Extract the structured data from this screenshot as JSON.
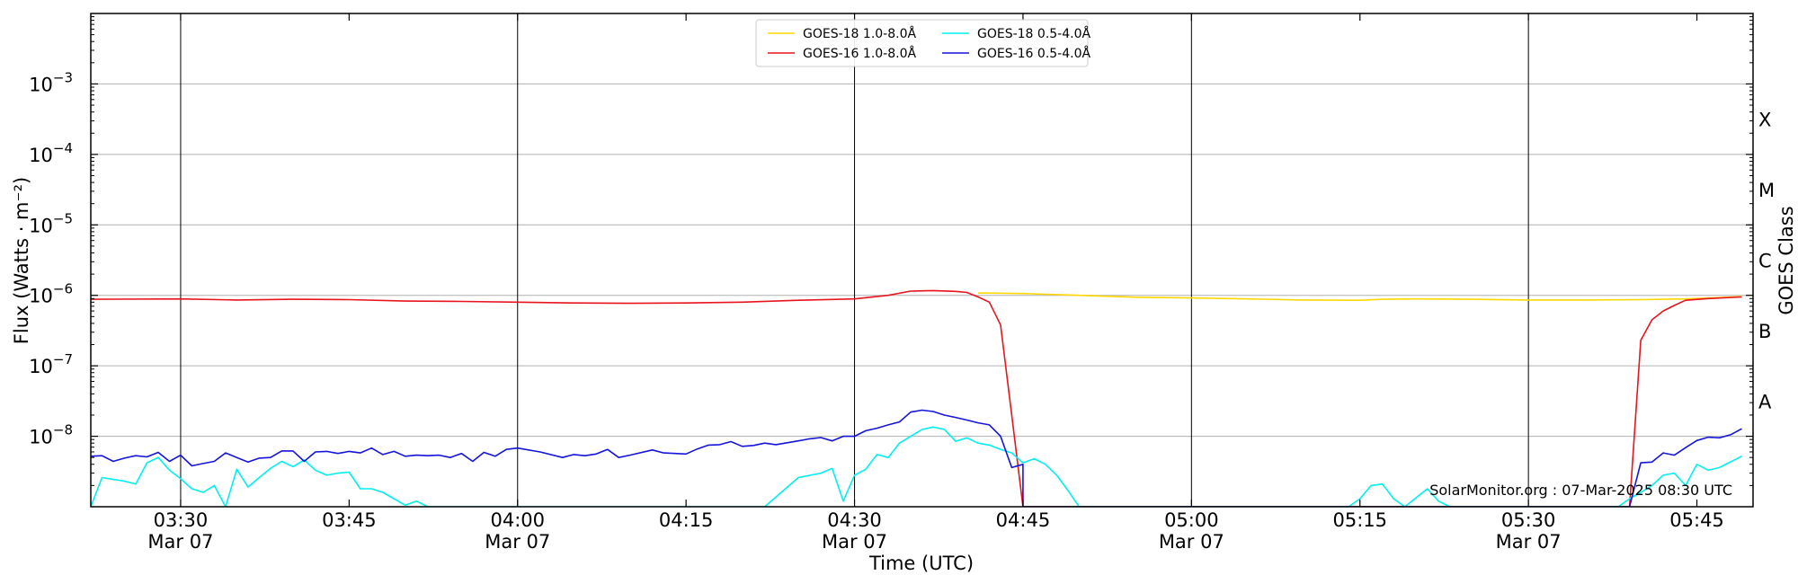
{
  "chart_data": {
    "type": "line",
    "xlabel": "Time (UTC)",
    "ylabel": "Flux (Watts · m⁻²)",
    "right_label": "GOES Class",
    "credit": "SolarMonitor.org : 07-Mar-2025 08:30 UTC",
    "ylog": true,
    "xlim": [
      "03:22",
      "05:50"
    ],
    "ylim": [
      1e-09,
      0.01
    ],
    "grid": "horizontal",
    "legend": "top-center",
    "x_ticks": [
      {
        "time": "03:30",
        "label": "03:30",
        "date": "Mar 07",
        "vline": true
      },
      {
        "time": "03:45",
        "label": "03:45",
        "date": "",
        "vline": false
      },
      {
        "time": "04:00",
        "label": "04:00",
        "date": "Mar 07",
        "vline": true
      },
      {
        "time": "04:15",
        "label": "04:15",
        "date": "",
        "vline": false
      },
      {
        "time": "04:30",
        "label": "04:30",
        "date": "Mar 07",
        "vline": true
      },
      {
        "time": "04:45",
        "label": "04:45",
        "date": "",
        "vline": false
      },
      {
        "time": "05:00",
        "label": "05:00",
        "date": "Mar 07",
        "vline": true
      },
      {
        "time": "05:15",
        "label": "05:15",
        "date": "",
        "vline": false
      },
      {
        "time": "05:30",
        "label": "05:30",
        "date": "Mar 07",
        "vline": true
      },
      {
        "time": "05:45",
        "label": "05:45",
        "date": "",
        "vline": false
      }
    ],
    "y_ticks": [
      {
        "value": 1e-08,
        "base": "10",
        "exp": "−8"
      },
      {
        "value": 1e-07,
        "base": "10",
        "exp": "−7"
      },
      {
        "value": 1e-06,
        "base": "10",
        "exp": "−6"
      },
      {
        "value": 1e-05,
        "base": "10",
        "exp": "−5"
      },
      {
        "value": 0.0001,
        "base": "10",
        "exp": "−4"
      },
      {
        "value": 0.001,
        "base": "10",
        "exp": "−3"
      }
    ],
    "goes_classes": [
      {
        "label": "A",
        "value": 3.16e-08
      },
      {
        "label": "B",
        "value": 3.16e-07
      },
      {
        "label": "C",
        "value": 3.16e-06
      },
      {
        "label": "M",
        "value": 3.16e-05
      },
      {
        "label": "X",
        "value": 0.000316
      }
    ],
    "series": [
      {
        "name": "GOES-18 1.0-8.0Å",
        "color": "#ffd700",
        "points": [
          [
            "04:41",
            1.08e-06
          ],
          [
            "04:45",
            1.06e-06
          ],
          [
            "04:50",
            1e-06
          ],
          [
            "04:55",
            9.4e-07
          ],
          [
            "05:00",
            9.2e-07
          ],
          [
            "05:05",
            8.9e-07
          ],
          [
            "05:10",
            8.6e-07
          ],
          [
            "05:15",
            8.5e-07
          ],
          [
            "05:17",
            8.8e-07
          ],
          [
            "05:20",
            8.9e-07
          ],
          [
            "05:25",
            8.8e-07
          ],
          [
            "05:30",
            8.6e-07
          ],
          [
            "05:35",
            8.6e-07
          ],
          [
            "05:40",
            8.7e-07
          ],
          [
            "05:44",
            8.9e-07
          ],
          [
            "05:47",
            9.3e-07
          ],
          [
            "05:49",
            9.6e-07
          ]
        ]
      },
      {
        "name": "GOES-16 1.0-8.0Å",
        "color": "#e8141e",
        "points": [
          [
            "03:22",
            8.8e-07
          ],
          [
            "03:30",
            8.9e-07
          ],
          [
            "03:35",
            8.6e-07
          ],
          [
            "03:40",
            8.8e-07
          ],
          [
            "03:45",
            8.7e-07
          ],
          [
            "03:50",
            8.3e-07
          ],
          [
            "03:55",
            8.2e-07
          ],
          [
            "04:00",
            8e-07
          ],
          [
            "04:05",
            7.8e-07
          ],
          [
            "04:10",
            7.7e-07
          ],
          [
            "04:15",
            7.8e-07
          ],
          [
            "04:20",
            8e-07
          ],
          [
            "04:25",
            8.5e-07
          ],
          [
            "04:30",
            8.9e-07
          ],
          [
            "04:33",
            1e-06
          ],
          [
            "04:35",
            1.15e-06
          ],
          [
            "04:37",
            1.17e-06
          ],
          [
            "04:39",
            1.14e-06
          ],
          [
            "04:40",
            1.1e-06
          ],
          [
            "04:41",
            9.5e-07
          ],
          [
            "04:42",
            8e-07
          ],
          [
            "04:43",
            3.8e-07
          ],
          [
            "04:44",
            2e-08
          ],
          [
            "04:45",
            1e-09
          ],
          [
            "05:39",
            1e-09
          ],
          [
            "05:40",
            2.3e-07
          ],
          [
            "05:41",
            4.5e-07
          ],
          [
            "05:42",
            6e-07
          ],
          [
            "05:43",
            7.2e-07
          ],
          [
            "05:44",
            8.5e-07
          ],
          [
            "05:46",
            9e-07
          ],
          [
            "05:49",
            9.5e-07
          ]
        ]
      },
      {
        "name": "GOES-18 0.5-4.0Å",
        "color": "#00f0f0",
        "points": [
          [
            "03:22",
            1e-09
          ],
          [
            "03:23",
            2.6e-09
          ],
          [
            "03:25",
            2.3e-09
          ],
          [
            "03:26",
            2.1e-09
          ],
          [
            "03:27",
            4.2e-09
          ],
          [
            "03:28",
            5e-09
          ],
          [
            "03:29",
            3.3e-09
          ],
          [
            "03:30",
            2.5e-09
          ],
          [
            "03:31",
            1.8e-09
          ],
          [
            "03:32",
            1.6e-09
          ],
          [
            "03:33",
            2e-09
          ],
          [
            "03:34",
            1e-09
          ],
          [
            "03:35",
            3.4e-09
          ],
          [
            "03:36",
            1.9e-09
          ],
          [
            "03:37",
            2.6e-09
          ],
          [
            "03:38",
            3.5e-09
          ],
          [
            "03:39",
            4.4e-09
          ],
          [
            "03:40",
            3.7e-09
          ],
          [
            "03:41",
            4.6e-09
          ],
          [
            "03:42",
            3.3e-09
          ],
          [
            "03:43",
            2.8e-09
          ],
          [
            "03:44",
            3e-09
          ],
          [
            "03:45",
            3.1e-09
          ],
          [
            "03:46",
            1.8e-09
          ],
          [
            "03:47",
            1.8e-09
          ],
          [
            "03:48",
            1.6e-09
          ],
          [
            "03:50",
            1.05e-09
          ],
          [
            "03:51",
            1.2e-09
          ],
          [
            "03:52",
            1e-09
          ],
          [
            "04:22",
            1e-09
          ],
          [
            "04:25",
            2.6e-09
          ],
          [
            "04:27",
            3e-09
          ],
          [
            "04:28",
            3.5e-09
          ],
          [
            "04:29",
            1.2e-09
          ],
          [
            "04:30",
            2.8e-09
          ],
          [
            "04:31",
            3.4e-09
          ],
          [
            "04:32",
            5.5e-09
          ],
          [
            "04:33",
            5e-09
          ],
          [
            "04:34",
            8e-09
          ],
          [
            "04:35",
            1e-08
          ],
          [
            "04:36",
            1.25e-08
          ],
          [
            "04:37",
            1.35e-08
          ],
          [
            "04:38",
            1.25e-08
          ],
          [
            "04:39",
            8.5e-09
          ],
          [
            "04:40",
            9.5e-09
          ],
          [
            "04:41",
            8e-09
          ],
          [
            "04:42",
            7.5e-09
          ],
          [
            "04:43",
            6.5e-09
          ],
          [
            "04:44",
            5.8e-09
          ],
          [
            "04:45",
            4.2e-09
          ],
          [
            "04:46",
            4.8e-09
          ],
          [
            "04:47",
            4e-09
          ],
          [
            "04:48",
            2.8e-09
          ],
          [
            "04:49",
            1.7e-09
          ],
          [
            "04:50",
            1e-09
          ],
          [
            "05:14",
            1e-09
          ],
          [
            "05:15",
            1.3e-09
          ],
          [
            "05:16",
            2e-09
          ],
          [
            "05:17",
            2.1e-09
          ],
          [
            "05:18",
            1.3e-09
          ],
          [
            "05:19",
            1e-09
          ],
          [
            "05:21",
            1.8e-09
          ],
          [
            "05:22",
            1.2e-09
          ],
          [
            "05:23",
            1e-09
          ],
          [
            "05:38",
            1e-09
          ],
          [
            "05:39",
            1.3e-09
          ],
          [
            "05:40",
            1.6e-09
          ],
          [
            "05:41",
            2e-09
          ],
          [
            "05:42",
            2.8e-09
          ],
          [
            "05:43",
            3e-09
          ],
          [
            "05:44",
            2e-09
          ],
          [
            "05:45",
            4e-09
          ],
          [
            "05:46",
            3.3e-09
          ],
          [
            "05:47",
            3.6e-09
          ],
          [
            "05:49",
            5.2e-09
          ]
        ]
      },
      {
        "name": "GOES-16 0.5-4.0Å",
        "color": "#1414dc",
        "points": [
          [
            "03:22",
            5.2e-09
          ],
          [
            "03:23",
            5.3e-09
          ],
          [
            "03:24",
            4.4e-09
          ],
          [
            "03:25",
            4.9e-09
          ],
          [
            "03:26",
            5.3e-09
          ],
          [
            "03:27",
            5.1e-09
          ],
          [
            "03:28",
            5.9e-09
          ],
          [
            "03:29",
            4.4e-09
          ],
          [
            "03:30",
            5.4e-09
          ],
          [
            "03:31",
            3.8e-09
          ],
          [
            "03:32",
            4.1e-09
          ],
          [
            "03:33",
            4.4e-09
          ],
          [
            "03:34",
            5.8e-09
          ],
          [
            "03:35",
            5e-09
          ],
          [
            "03:36",
            4.3e-09
          ],
          [
            "03:37",
            4.9e-09
          ],
          [
            "03:38",
            5e-09
          ],
          [
            "03:39",
            6.2e-09
          ],
          [
            "03:40",
            6.2e-09
          ],
          [
            "03:41",
            4.4e-09
          ],
          [
            "03:42",
            6e-09
          ],
          [
            "03:43",
            6.1e-09
          ],
          [
            "03:44",
            5.7e-09
          ],
          [
            "03:45",
            6.1e-09
          ],
          [
            "03:46",
            5.8e-09
          ],
          [
            "03:47",
            6.8e-09
          ],
          [
            "03:48",
            5.5e-09
          ],
          [
            "03:49",
            6.1e-09
          ],
          [
            "03:50",
            5.2e-09
          ],
          [
            "03:51",
            5.4e-09
          ],
          [
            "03:52",
            5.3e-09
          ],
          [
            "03:53",
            5.4e-09
          ],
          [
            "03:54",
            5e-09
          ],
          [
            "03:55",
            5.7e-09
          ],
          [
            "03:56",
            4.4e-09
          ],
          [
            "03:57",
            5.9e-09
          ],
          [
            "03:58",
            5.2e-09
          ],
          [
            "03:59",
            6.5e-09
          ],
          [
            "04:00",
            6.8e-09
          ],
          [
            "04:02",
            6e-09
          ],
          [
            "04:04",
            5e-09
          ],
          [
            "04:05",
            5.5e-09
          ],
          [
            "04:06",
            5.3e-09
          ],
          [
            "04:07",
            5.6e-09
          ],
          [
            "04:08",
            6.5e-09
          ],
          [
            "04:09",
            5e-09
          ],
          [
            "04:10",
            5.4e-09
          ],
          [
            "04:12",
            6.4e-09
          ],
          [
            "04:13",
            5.8e-09
          ],
          [
            "04:15",
            5.6e-09
          ],
          [
            "04:16",
            6.6e-09
          ],
          [
            "04:17",
            7.5e-09
          ],
          [
            "04:18",
            7.6e-09
          ],
          [
            "04:19",
            8.4e-09
          ],
          [
            "04:20",
            7.2e-09
          ],
          [
            "04:21",
            7.4e-09
          ],
          [
            "04:22",
            8e-09
          ],
          [
            "04:23",
            7.6e-09
          ],
          [
            "04:25",
            8.6e-09
          ],
          [
            "04:26",
            9.2e-09
          ],
          [
            "04:27",
            9.6e-09
          ],
          [
            "04:28",
            8.6e-09
          ],
          [
            "04:29",
            1e-08
          ],
          [
            "04:30",
            1e-08
          ],
          [
            "04:31",
            1.2e-08
          ],
          [
            "04:32",
            1.3e-08
          ],
          [
            "04:33",
            1.45e-08
          ],
          [
            "04:34",
            1.6e-08
          ],
          [
            "04:35",
            2.2e-08
          ],
          [
            "04:36",
            2.35e-08
          ],
          [
            "04:37",
            2.25e-08
          ],
          [
            "04:38",
            2e-08
          ],
          [
            "04:39",
            1.85e-08
          ],
          [
            "04:40",
            1.7e-08
          ],
          [
            "04:41",
            1.55e-08
          ],
          [
            "04:42",
            1.45e-08
          ],
          [
            "04:43",
            1e-08
          ],
          [
            "04:44",
            3.6e-09
          ],
          [
            "04:45",
            4e-09
          ],
          [
            "04:45",
            1e-09
          ],
          [
            "05:39",
            1e-09
          ],
          [
            "05:40",
            4.2e-09
          ],
          [
            "05:41",
            4.3e-09
          ],
          [
            "05:42",
            5.8e-09
          ],
          [
            "05:43",
            5.4e-09
          ],
          [
            "05:44",
            6.9e-09
          ],
          [
            "05:45",
            8.7e-09
          ],
          [
            "05:46",
            9.7e-09
          ],
          [
            "05:47",
            9.5e-09
          ],
          [
            "05:48",
            1.05e-08
          ],
          [
            "05:49",
            1.28e-08
          ]
        ]
      }
    ]
  }
}
